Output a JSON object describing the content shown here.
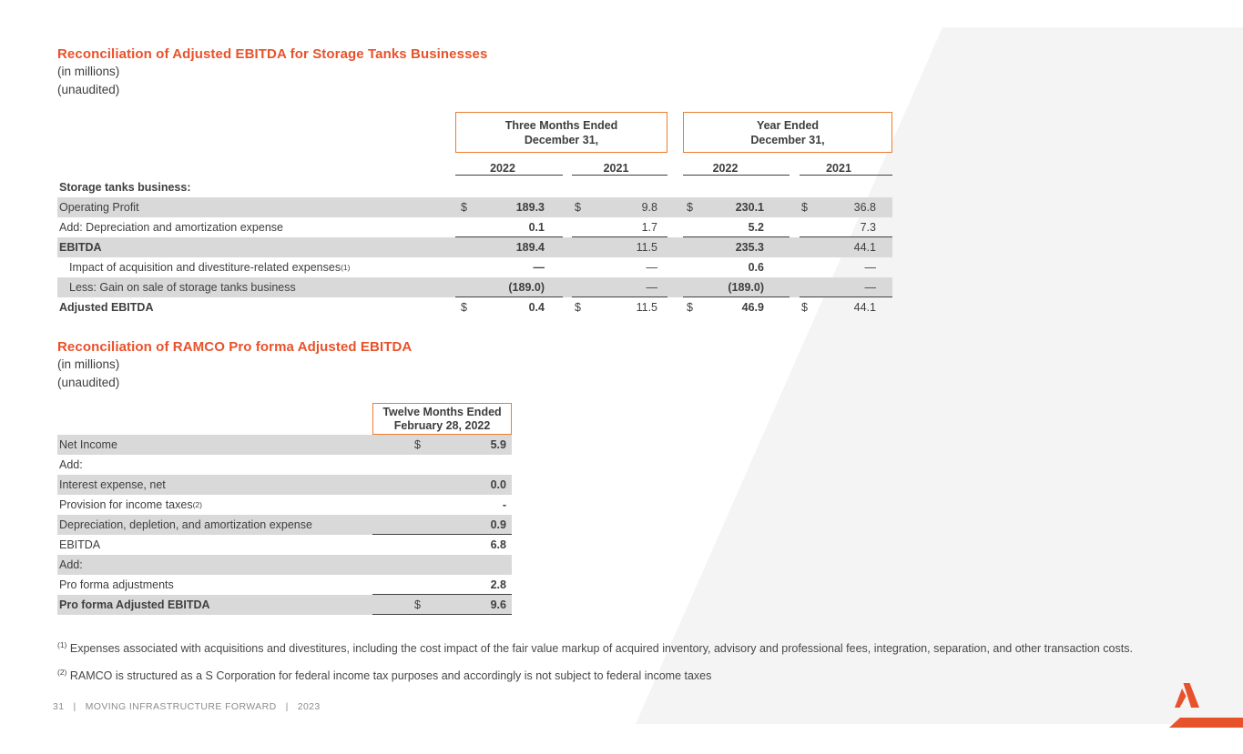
{
  "colors": {
    "accent_orange": "#E8522B",
    "box_border_orange": "#ED7D31",
    "row_shade_gray": "#D9D9D9",
    "swoosh_gray": "#F4F4F4",
    "rule_line": "#404040"
  },
  "section1": {
    "title": "Reconciliation of Adjusted EBITDA for Storage Tanks Businesses",
    "subtitle1": "(in millions)",
    "subtitle2": "(unaudited)"
  },
  "table1": {
    "header_boxes": [
      {
        "line1": "Three Months Ended",
        "line2": "December 31,"
      },
      {
        "line1": "Year Ended",
        "line2": "December 31,"
      }
    ],
    "years": [
      "2022",
      "2021",
      "2022",
      "2021"
    ],
    "section_label": "Storage tanks business:",
    "rows": [
      {
        "label": "Operating Profit",
        "dollar": "$",
        "values": [
          "189.3",
          "9.8",
          "230.1",
          "36.8"
        ],
        "shaded": true
      },
      {
        "label": "Add: Depreciation and amortization expense",
        "dollar": "",
        "values": [
          "0.1",
          "1.7",
          "5.2",
          "7.3"
        ],
        "uline": true
      },
      {
        "label": "EBITDA",
        "dollar": "",
        "values": [
          "189.4",
          "11.5",
          "235.3",
          "44.1"
        ],
        "shaded": true,
        "bold": true
      },
      {
        "label": "Impact of acquisition and divestiture-related expenses",
        "sup": "(1)",
        "dollar": "",
        "values": [
          "—",
          "—",
          "0.6",
          "—"
        ],
        "indent": true
      },
      {
        "label": "Less: Gain on sale of storage tanks business",
        "dollar": "",
        "values": [
          "(189.0)",
          "—",
          "(189.0)",
          "—"
        ],
        "shaded": true,
        "indent": true,
        "uline": true
      },
      {
        "label": "Adjusted EBITDA",
        "dollar": "$",
        "values": [
          "0.4",
          "11.5",
          "46.9",
          "44.1"
        ],
        "bold": true
      }
    ]
  },
  "section2": {
    "title": "Reconciliation of RAMCO Pro forma Adjusted EBITDA",
    "subtitle1": "(in millions)",
    "subtitle2": "(unaudited)"
  },
  "table2": {
    "header_box": {
      "line1": "Twelve Months Ended",
      "line2": "February 28, 2022"
    },
    "rows": [
      {
        "label": "Net Income",
        "dollar": "$",
        "value": "5.9",
        "shaded": true
      },
      {
        "label": "Add:",
        "dollar": "",
        "value": ""
      },
      {
        "label": "Interest expense, net",
        "dollar": "",
        "value": "0.0",
        "shaded": true
      },
      {
        "label": "Provision for income taxes",
        "sup": "(2)",
        "dollar": "",
        "value": "-"
      },
      {
        "label": "Depreciation, depletion, and amortization expense",
        "dollar": "",
        "value": "0.9",
        "shaded": true,
        "uline": true
      },
      {
        "label": "EBITDA",
        "dollar": "",
        "value": "6.8"
      },
      {
        "label": "Add:",
        "dollar": "",
        "value": "",
        "shaded": true
      },
      {
        "label": "Pro forma adjustments",
        "dollar": "",
        "value": "2.8",
        "uline": true
      },
      {
        "label": "Pro forma Adjusted EBITDA",
        "dollar": "$",
        "value": "9.6",
        "shaded": true,
        "bold": true,
        "bline": true
      }
    ]
  },
  "footnotes": [
    {
      "sup": "(1)",
      "text": "Expenses associated with acquisitions and divestitures, including the cost impact of the fair value markup of acquired inventory, advisory and professional fees, integration, separation, and other transaction costs."
    },
    {
      "sup": "(2)",
      "text": "RAMCO is structured as a S Corporation for federal income tax purposes and accordingly is not subject to federal income taxes"
    }
  ],
  "footer": {
    "page": "31",
    "separator": "|",
    "tagline": "MOVING INFRASTRUCTURE FORWARD",
    "year": "2023"
  }
}
